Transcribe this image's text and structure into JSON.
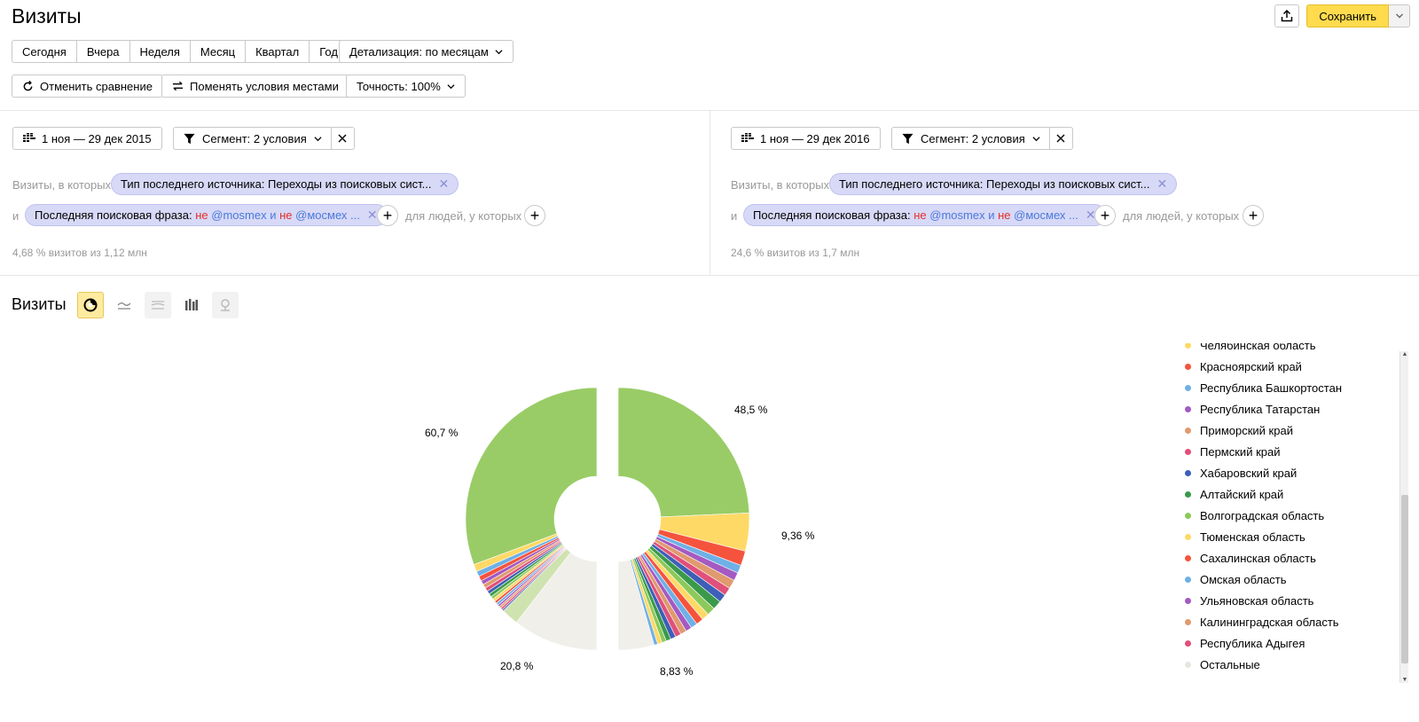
{
  "header": {
    "title": "Визиты",
    "save_label": "Сохранить"
  },
  "periods": [
    "Сегодня",
    "Вчера",
    "Неделя",
    "Месяц",
    "Квартал",
    "Год"
  ],
  "detail_label": "Детализация: по месяцам",
  "toolbar": {
    "cancel_compare": "Отменить сравнение",
    "swap_conditions": "Поменять условия местами",
    "accuracy": "Точность: 100%"
  },
  "panels": [
    {
      "date_range": "1 ноя — 29 дек 2015",
      "segment": "Сегмент: 2 условия",
      "visits_where": "Визиты, в которых",
      "condition1": "Тип последнего источника: Переходы из поисковых сист...",
      "and": "и",
      "condition2_prefix": "Последняя поисковая фраза: ",
      "not1": "не",
      "kw1": "@mosmex",
      "and2": "и",
      "not2": "не",
      "kw2": "@мосмех ...",
      "people": "для людей, у которых",
      "stat": "4,68 % визитов из 1,12 млн"
    },
    {
      "date_range": "1 ноя — 29 дек 2016",
      "segment": "Сегмент: 2 условия",
      "visits_where": "Визиты, в которых",
      "condition1": "Тип последнего источника: Переходы из поисковых сист...",
      "and": "и",
      "condition2_prefix": "Последняя поисковая фраза: ",
      "not1": "не",
      "kw1": "@mosmex",
      "and2": "и",
      "not2": "не",
      "kw2": "@мосмех ...",
      "people": "для людей, у которых",
      "stat": "24,6 % визитов из 1,7 млн"
    }
  ],
  "chart_section_title": "Визиты",
  "legend": [
    {
      "label": "Челябинская область",
      "color": "#ffd966"
    },
    {
      "label": "Красноярский край",
      "color": "#f5533d"
    },
    {
      "label": "Республика Башкортостан",
      "color": "#6fb0e6"
    },
    {
      "label": "Республика Татарстан",
      "color": "#a45ac2"
    },
    {
      "label": "Приморский край",
      "color": "#e09a6e"
    },
    {
      "label": "Пермский край",
      "color": "#e0507a"
    },
    {
      "label": "Хабаровский край",
      "color": "#3d5fb8"
    },
    {
      "label": "Алтайский край",
      "color": "#3a9a4a"
    },
    {
      "label": "Волгоградская область",
      "color": "#8cc95a"
    },
    {
      "label": "Тюменская область",
      "color": "#ffd966"
    },
    {
      "label": "Сахалинская область",
      "color": "#f5533d"
    },
    {
      "label": "Омская область",
      "color": "#6fb0e6"
    },
    {
      "label": "Ульяновская область",
      "color": "#a45ac2"
    },
    {
      "label": "Калининградская область",
      "color": "#e09a6e"
    },
    {
      "label": "Республика Адыгея",
      "color": "#e0507a"
    },
    {
      "label": "Остальные",
      "color": "#f0efea"
    }
  ],
  "chart_data": {
    "type": "pie",
    "series": [
      {
        "name": "",
        "slices": [
          {
            "value": 60.7,
            "color": "#99cc66",
            "label": "60,7 %"
          },
          {
            "value": 1.8,
            "color": "#ffd966"
          },
          {
            "value": 1.3,
            "color": "#6fb0e6"
          },
          {
            "value": 1.2,
            "color": "#f5533d"
          },
          {
            "value": 1.0,
            "color": "#a45ac2"
          },
          {
            "value": 1.0,
            "color": "#e09a6e"
          },
          {
            "value": 0.9,
            "color": "#e0507a"
          },
          {
            "value": 0.8,
            "color": "#3d5fb8"
          },
          {
            "value": 0.8,
            "color": "#3a9a4a"
          },
          {
            "value": 0.7,
            "color": "#8cc95a"
          },
          {
            "value": 0.7,
            "color": "#ffd966"
          },
          {
            "value": 0.6,
            "color": "#f5533d"
          },
          {
            "value": 0.6,
            "color": "#6fb0e6"
          },
          {
            "value": 0.5,
            "color": "#a45ac2"
          },
          {
            "value": 0.5,
            "color": "#e09a6e"
          },
          {
            "value": 0.5,
            "color": "#e0507a"
          },
          {
            "value": 0.4,
            "color": "#3d5fb8"
          },
          {
            "value": 4.2,
            "color": "#cfe3b0"
          },
          {
            "value": 20.8,
            "color": "#f0efea",
            "label": "20,8 %"
          }
        ]
      },
      {
        "name": "",
        "slices": [
          {
            "value": 48.5,
            "color": "#99cc66",
            "label": "48,5 %"
          },
          {
            "value": 9.36,
            "color": "#ffd966",
            "label": "9,36 %"
          },
          {
            "value": 3.6,
            "color": "#f5533d"
          },
          {
            "value": 2.0,
            "color": "#6fb0e6"
          },
          {
            "value": 2.0,
            "color": "#a45ac2"
          },
          {
            "value": 2.2,
            "color": "#e09a6e"
          },
          {
            "value": 2.0,
            "color": "#e0507a"
          },
          {
            "value": 2.0,
            "color": "#3d5fb8"
          },
          {
            "value": 2.2,
            "color": "#3a9a4a"
          },
          {
            "value": 2.0,
            "color": "#8cc95a"
          },
          {
            "value": 1.8,
            "color": "#ffd966"
          },
          {
            "value": 1.8,
            "color": "#f5533d"
          },
          {
            "value": 1.6,
            "color": "#6fb0e6"
          },
          {
            "value": 1.5,
            "color": "#a45ac2"
          },
          {
            "value": 1.5,
            "color": "#e09a6e"
          },
          {
            "value": 1.4,
            "color": "#e0507a"
          },
          {
            "value": 1.3,
            "color": "#3d5fb8"
          },
          {
            "value": 1.2,
            "color": "#3a9a4a"
          },
          {
            "value": 1.1,
            "color": "#8cc95a"
          },
          {
            "value": 1.1,
            "color": "#ffd966"
          },
          {
            "value": 0.9,
            "color": "#6fb0e6"
          },
          {
            "value": 8.83,
            "color": "#f0efea",
            "label": "8,83 %"
          }
        ]
      }
    ]
  }
}
